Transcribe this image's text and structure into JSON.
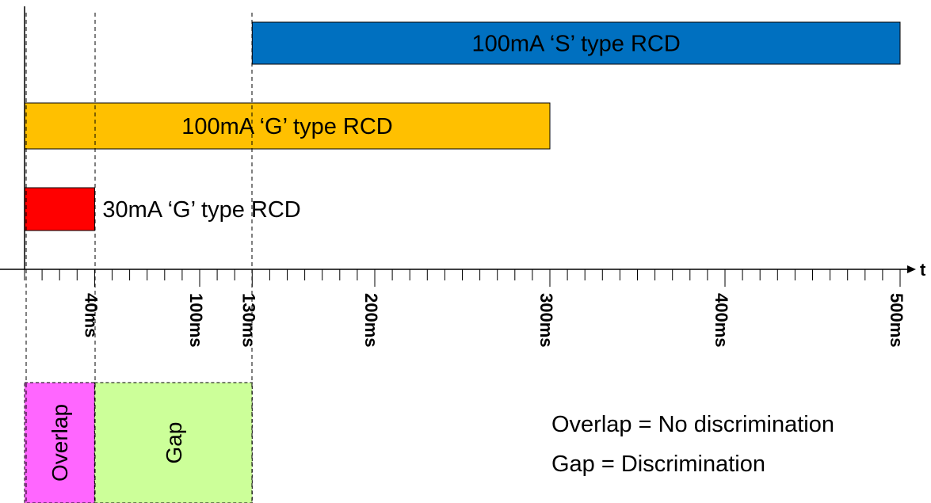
{
  "chart_data": {
    "type": "bar",
    "axis_label": "t",
    "xlim": [
      0,
      500
    ],
    "bars": [
      {
        "label": "100mA ‘S’ type RCD",
        "start": 130,
        "end": 500,
        "color": "#0070c0",
        "label_position": "inside"
      },
      {
        "label": "100mA ‘G’ type RCD",
        "start": 0,
        "end": 300,
        "color": "#ffc000",
        "label_position": "inside"
      },
      {
        "label": "30mA ‘G’ type RCD",
        "start": 0,
        "end": 40,
        "color": "#ff0000",
        "label_position": "right"
      }
    ],
    "tick_labels": [
      {
        "value": 40,
        "label": "40ms"
      },
      {
        "value": 100,
        "label": "100ms"
      },
      {
        "value": 130,
        "label": "130ms"
      },
      {
        "value": 200,
        "label": "200ms"
      },
      {
        "value": 300,
        "label": "300ms"
      },
      {
        "value": 400,
        "label": "400ms"
      },
      {
        "value": 500,
        "label": "500ms"
      }
    ],
    "minor_tick_step": 10,
    "dashed_guides": [
      0,
      40,
      130
    ],
    "regions": [
      {
        "label": "Overlap",
        "start": 0,
        "end": 40,
        "color": "#ff66ff"
      },
      {
        "label": "Gap",
        "start": 40,
        "end": 130,
        "color": "#ccff99"
      }
    ]
  },
  "legend": {
    "line1": "Overlap = No discrimination",
    "line2": "Gap = Discrimination"
  }
}
